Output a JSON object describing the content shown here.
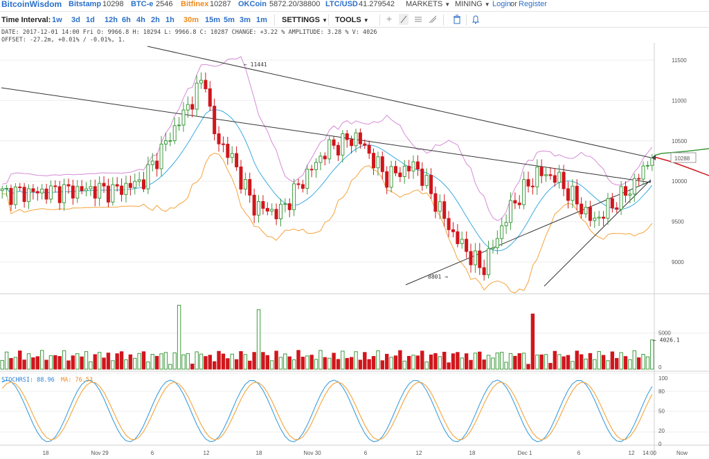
{
  "topbar": {
    "brand": "BitcoinWisdom",
    "exchanges": [
      {
        "name": "Bitstamp",
        "price": "10298",
        "color": "blue"
      },
      {
        "name": "BTC-e",
        "price": "2546",
        "color": "blue"
      },
      {
        "name": "Bitfinex",
        "price": "10287",
        "color": "orange"
      },
      {
        "name": "OKCoin",
        "price": "5872.20/38800",
        "color": "blue"
      },
      {
        "name": "LTC/USD",
        "price": "41.279542",
        "color": "blue"
      }
    ],
    "markets": "MARKETS",
    "mining": "MINING",
    "login": "Login",
    "or": "or",
    "register": "Register"
  },
  "toolbar": {
    "time_interval_label": "Time Interval:",
    "intervals": [
      "1w",
      "3d",
      "1d",
      "12h",
      "6h",
      "4h",
      "2h",
      "1h",
      "30m",
      "15m",
      "5m",
      "3m",
      "1m"
    ],
    "active_interval": "30m",
    "settings": "SETTINGS",
    "tools": "TOOLS",
    "tool_icons": [
      "crosshair-icon",
      "line-tool-icon",
      "hlines-tool-icon",
      "fibonacci-tool-icon",
      "trash-icon",
      "bell-icon"
    ]
  },
  "info": {
    "line1": "DATE: 2017-12-01 14:00 Fri   O: 9966.8   H: 10294   L: 9966.8   C: 10287   CHANGE: +3.22 %   AMPLITUDE: 3.28 %   V: 4026",
    "line2": "OFFSET: -27.2m, +0.01% / -0.01%, 1."
  },
  "price_axis": [
    "11500",
    "11000",
    "10500",
    "10000",
    "9500",
    "9000"
  ],
  "price_annotations": {
    "high": "11441",
    "low": "8801",
    "last": "10288"
  },
  "volume_axis": [
    "5000",
    "0"
  ],
  "volume_last": "4026.1",
  "stoch": {
    "label": "STOCHRSI: 88.96",
    "ma_label": "MA: 76.53",
    "axis": [
      "100",
      "80",
      "50",
      "20",
      "0"
    ]
  },
  "time_axis": [
    "18",
    "Nov 29",
    "6",
    "12",
    "18",
    "Nov 30",
    "6",
    "12",
    "18",
    "Dec 1",
    "6",
    "12",
    "14:00",
    "Now"
  ],
  "colors": {
    "up": "#3c9a3c",
    "down": "#d0161c",
    "boll_mid": "#3aa9e0",
    "boll_up": "#d48ad6",
    "boll_low": "#f5a23a",
    "stoch": "#3a9ee0",
    "stoch_ma": "#f5a23a"
  }
}
